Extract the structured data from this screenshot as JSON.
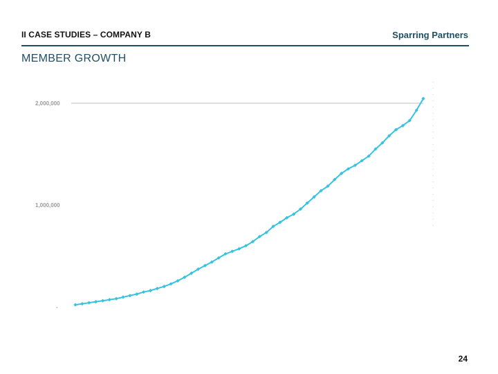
{
  "header": {
    "section": "II CASE STUDIES – COMPANY B",
    "brand": "Sparring Partners"
  },
  "title": "MEMBER GROWTH",
  "page_number": "24",
  "colors": {
    "accent": "#1f4e64",
    "series": "#36c3e0",
    "gridline": "#bdbdbd",
    "tick_label": "#9a9a9a"
  },
  "chart_data": {
    "type": "line",
    "title": "",
    "xlabel": "",
    "ylabel": "",
    "ylim": [
      0,
      2000000
    ],
    "y_ticks": [
      {
        "value": 2000000,
        "label": "2,000,000"
      },
      {
        "value": 1000000,
        "label": "1,000,000"
      },
      {
        "value": 0,
        "label": "-"
      }
    ],
    "grid": {
      "y_major_at": 2000000
    },
    "legend": "none",
    "series": [
      {
        "values": [
          20000,
          30000,
          40000,
          50000,
          60000,
          70000,
          80000,
          95000,
          110000,
          125000,
          145000,
          160000,
          180000,
          200000,
          225000,
          255000,
          290000,
          330000,
          370000,
          405000,
          440000,
          480000,
          520000,
          545000,
          570000,
          600000,
          640000,
          690000,
          730000,
          790000,
          830000,
          875000,
          910000,
          960000,
          1020000,
          1080000,
          1140000,
          1185000,
          1250000,
          1310000,
          1355000,
          1390000,
          1435000,
          1480000,
          1550000,
          1610000,
          1680000,
          1740000,
          1780000,
          1830000,
          1930000,
          2045000
        ]
      }
    ]
  }
}
